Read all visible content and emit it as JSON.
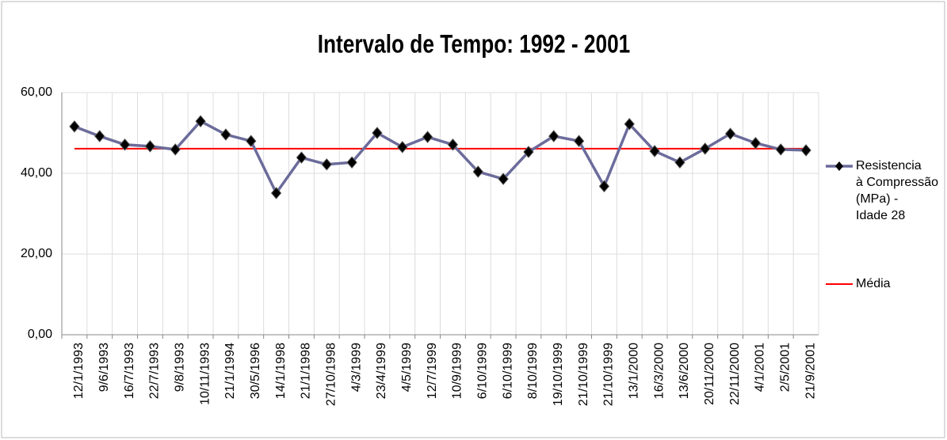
{
  "chart_data": {
    "type": "line",
    "title": "Intervalo de Tempo: 1992 - 2001",
    "categories": [
      "12/1/1993",
      "9/6/1993",
      "16/7/1993",
      "22/7/1993",
      "9/8/1993",
      "10/11/1993",
      "21/1/1994",
      "30/5/1996",
      "14/1/1998",
      "21/1/1998",
      "27/10/1998",
      "4/3/1999",
      "23/4/1999",
      "4/5/1999",
      "12/7/1999",
      "10/9/1999",
      "6/10/1999",
      "6/10/1999",
      "8/10/1999",
      "19/10/1999",
      "21/10/1999",
      "21/10/1999",
      "13/1/2000",
      "16/3/2000",
      "13/6/2000",
      "20/11/2000",
      "22/11/2000",
      "4/1/2001",
      "2/5/2001",
      "21/9/2001"
    ],
    "series": [
      {
        "name": "Resistencia à Compressão (MPa) - Idade 28",
        "color": "#6b6b9b",
        "marker": "diamond",
        "values": [
          51.6,
          49.2,
          47.1,
          46.7,
          45.9,
          52.9,
          49.6,
          48.0,
          35.1,
          43.9,
          42.2,
          42.7,
          50.0,
          46.5,
          49.0,
          47.1,
          40.4,
          38.6,
          45.3,
          49.2,
          48.0,
          36.8,
          52.2,
          45.5,
          42.7,
          46.1,
          49.8,
          47.5,
          45.9,
          45.7
        ]
      },
      {
        "name": "Média",
        "color": "#ff0000",
        "marker": "none",
        "values": [
          46.1,
          46.1,
          46.1,
          46.1,
          46.1,
          46.1,
          46.1,
          46.1,
          46.1,
          46.1,
          46.1,
          46.1,
          46.1,
          46.1,
          46.1,
          46.1,
          46.1,
          46.1,
          46.1,
          46.1,
          46.1,
          46.1,
          46.1,
          46.1,
          46.1,
          46.1,
          46.1,
          46.1,
          46.1,
          46.1
        ]
      }
    ],
    "ylim": [
      0,
      60
    ],
    "yticks": [
      {
        "value": 0,
        "label": "0,00"
      },
      {
        "value": 20,
        "label": "20,00"
      },
      {
        "value": 40,
        "label": "40,00"
      },
      {
        "value": 60,
        "label": "60,00"
      }
    ],
    "grid": true,
    "legend": "right"
  }
}
